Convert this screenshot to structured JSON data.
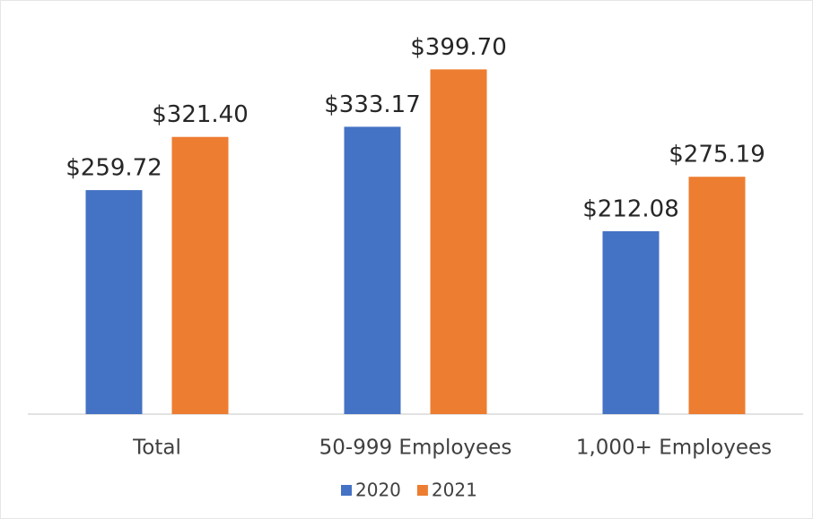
{
  "chart_data": {
    "type": "bar",
    "categories": [
      "Total",
      "50-999 Employees",
      "1,000+ Employees"
    ],
    "series": [
      {
        "name": "2020",
        "color": "#4472c4",
        "values": [
          259.72,
          333.17,
          212.08
        ],
        "value_labels": [
          "$259.72",
          "$333.17",
          "$212.08"
        ]
      },
      {
        "name": "2021",
        "color": "#ed7d31",
        "values": [
          321.4,
          399.7,
          275.19
        ],
        "value_labels": [
          "$321.40",
          "$399.70",
          "$275.19"
        ]
      }
    ],
    "ylim": [
      0,
      450
    ],
    "legend": "bottom"
  }
}
